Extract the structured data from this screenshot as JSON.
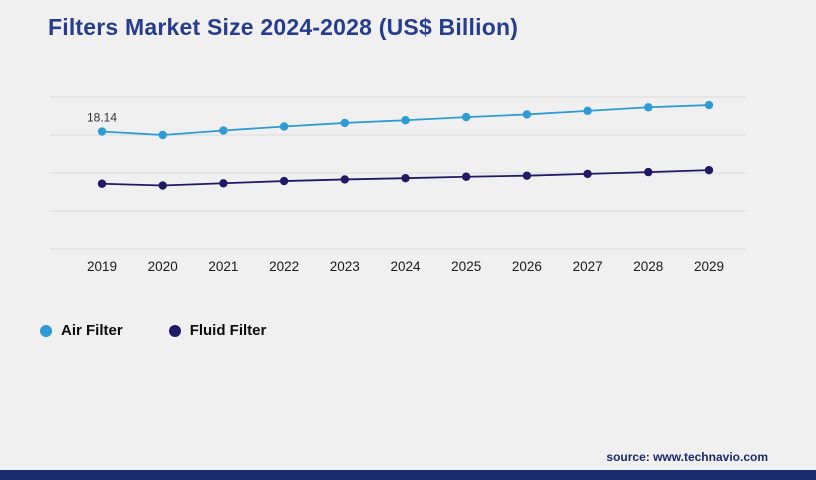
{
  "title": "Filters Market Size 2024-2028 (US$ Billion)",
  "source": "source: www.technavio.com",
  "colors": {
    "title_navy": "#263d8f",
    "footer_navy": "#1b2a6c",
    "background": "#f0f0f1",
    "gridline": "#dcdcdc",
    "axis_text": "#1a1a1a",
    "data_label_text": "#333333"
  },
  "chart_data": {
    "type": "line",
    "x": [
      "2019",
      "2020",
      "2021",
      "2022",
      "2023",
      "2024",
      "2025",
      "2026",
      "2027",
      "2028",
      "2029"
    ],
    "series": [
      {
        "name": "Air Filter",
        "color": "#2e9bd6",
        "values": [
          18.14,
          17.75,
          18.25,
          18.7,
          19.1,
          19.4,
          19.75,
          20.05,
          20.45,
          20.85,
          21.1
        ]
      },
      {
        "name": "Fluid Filter",
        "color": "#1f1a66",
        "values": [
          12.3,
          12.1,
          12.35,
          12.6,
          12.78,
          12.92,
          13.08,
          13.2,
          13.4,
          13.6,
          13.82
        ]
      }
    ],
    "title": "Filters Market Size 2024-2028 (US$ Billion)",
    "xlabel": "",
    "ylabel": "",
    "ylim": [
      5,
      22
    ],
    "grid": "horizontal",
    "gridlines": 5,
    "legend_position": "bottom-left",
    "data_labels": [
      {
        "series": 0,
        "index": 0,
        "text": "18.14"
      }
    ]
  }
}
